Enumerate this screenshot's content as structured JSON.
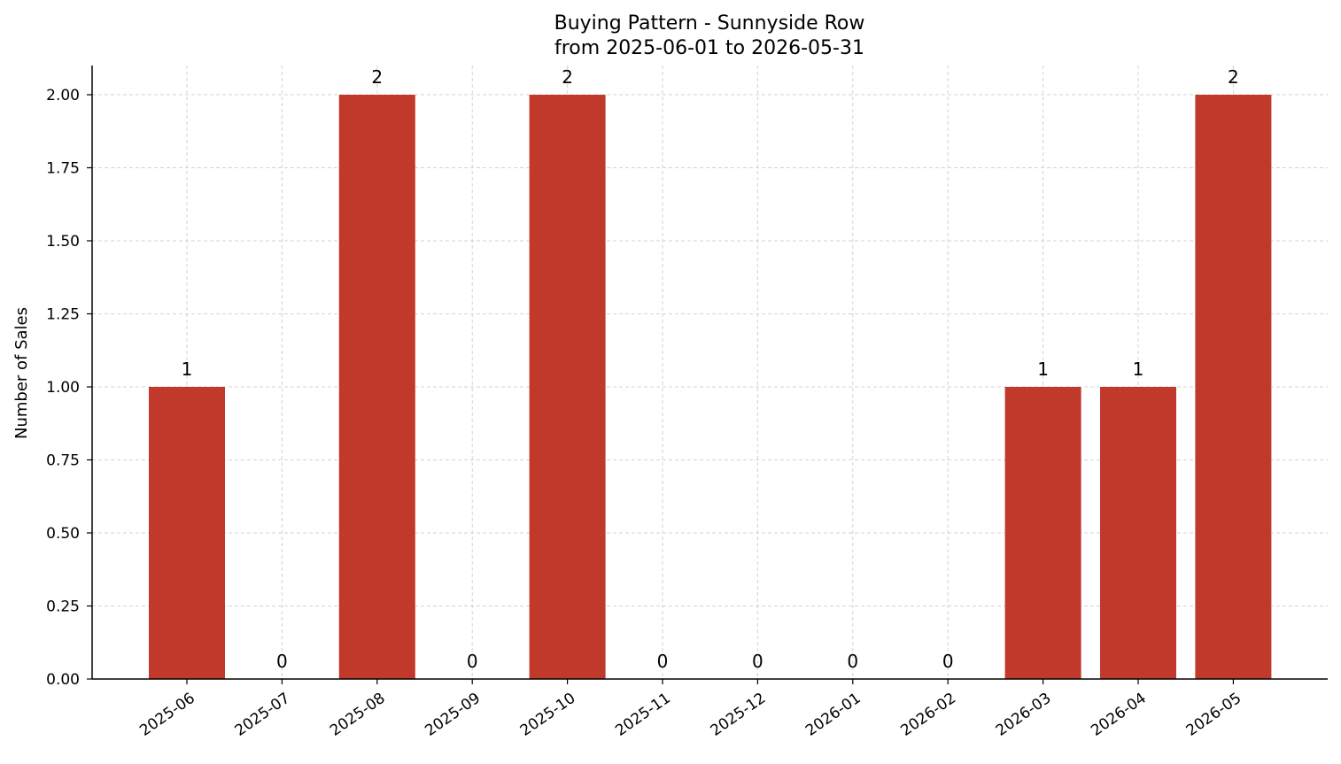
{
  "chart_data": {
    "type": "bar",
    "title": "Buying Pattern - Sunnyside Row",
    "subtitle": "from 2025-06-01 to 2026-05-31",
    "xlabel": "",
    "ylabel": "Number of Sales",
    "categories": [
      "2025-06",
      "2025-07",
      "2025-08",
      "2025-09",
      "2025-10",
      "2025-11",
      "2025-12",
      "2026-01",
      "2026-02",
      "2026-03",
      "2026-04",
      "2026-05"
    ],
    "values": [
      1,
      0,
      2,
      0,
      2,
      0,
      0,
      0,
      0,
      1,
      1,
      2
    ],
    "data_labels": [
      "1",
      "0",
      "2",
      "0",
      "2",
      "0",
      "0",
      "0",
      "0",
      "1",
      "1",
      "2"
    ],
    "ylim": [
      0,
      2.1
    ],
    "yticks": [
      0,
      0.25,
      0.5,
      0.75,
      1.0,
      1.25,
      1.5,
      1.75,
      2.0
    ],
    "ytick_labels": [
      "0.00",
      "0.25",
      "0.50",
      "0.75",
      "1.00",
      "1.25",
      "1.50",
      "1.75",
      "2.00"
    ],
    "grid": true,
    "legend": "none",
    "bar_color": "#c0392b"
  }
}
